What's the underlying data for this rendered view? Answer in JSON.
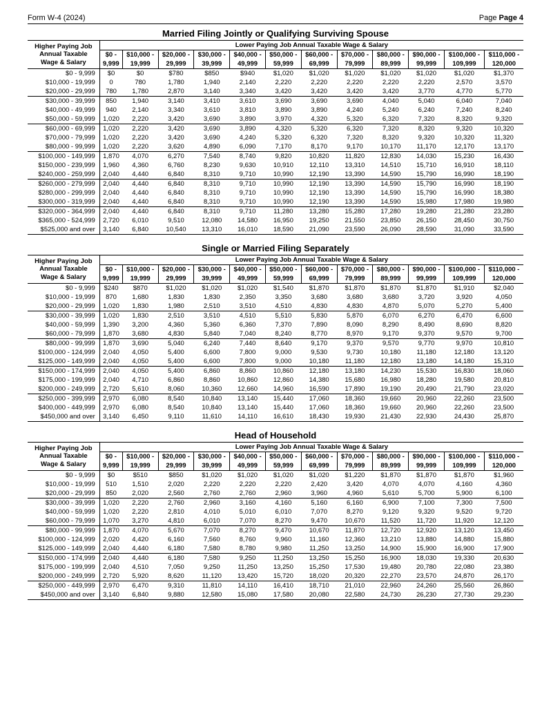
{
  "form_header": {
    "left": "Form W-4 (2024)",
    "right": "Page 4"
  },
  "tables": [
    {
      "title": "Married Filing Jointly or Qualifying Surviving Spouse",
      "left_header": [
        "Higher Paying Job",
        "Annual Taxable",
        "Wage & Salary"
      ],
      "lower_header": "Lower Paying Job Annual Taxable Wage & Salary",
      "col_top": [
        "$0 -",
        "$10,000 -",
        "$20,000 -",
        "$30,000 -",
        "$40,000 -",
        "$50,000 -",
        "$60,000 -",
        "$70,000 -",
        "$80,000 -",
        "$90,000 -",
        "$100,000 -",
        "$110,000 -"
      ],
      "col_bottom": [
        "9,999",
        "19,999",
        "29,999",
        "39,999",
        "49,999",
        "59,999",
        "69,999",
        "79,999",
        "89,999",
        "99,999",
        "109,999",
        "120,000"
      ],
      "rows": [
        {
          "label": "$0 -    9,999",
          "vals": [
            "$0",
            "$0",
            "$780",
            "$850",
            "$940",
            "$1,020",
            "$1,020",
            "$1,020",
            "$1,020",
            "$1,020",
            "$1,020",
            "$1,370"
          ]
        },
        {
          "label": "$10,000 -   19,999",
          "vals": [
            "0",
            "780",
            "1,780",
            "1,940",
            "2,140",
            "2,220",
            "2,220",
            "2,220",
            "2,220",
            "2,220",
            "2,570",
            "3,570"
          ]
        },
        {
          "label": "$20,000 -   29,999",
          "vals": [
            "780",
            "1,780",
            "2,870",
            "3,140",
            "3,340",
            "3,420",
            "3,420",
            "3,420",
            "3,420",
            "3,770",
            "4,770",
            "5,770"
          ]
        },
        {
          "label": "$30,000 -   39,999",
          "vals": [
            "850",
            "1,940",
            "3,140",
            "3,410",
            "3,610",
            "3,690",
            "3,690",
            "3,690",
            "4,040",
            "5,040",
            "6,040",
            "7,040"
          ],
          "sep": true
        },
        {
          "label": "$40,000 -   49,999",
          "vals": [
            "940",
            "2,140",
            "3,340",
            "3,610",
            "3,810",
            "3,890",
            "3,890",
            "4,240",
            "5,240",
            "6,240",
            "7,240",
            "8,240"
          ]
        },
        {
          "label": "$50,000 -   59,999",
          "vals": [
            "1,020",
            "2,220",
            "3,420",
            "3,690",
            "3,890",
            "3,970",
            "4,320",
            "5,320",
            "6,320",
            "7,320",
            "8,320",
            "9,320"
          ]
        },
        {
          "label": "$60,000 -   69,999",
          "vals": [
            "1,020",
            "2,220",
            "3,420",
            "3,690",
            "3,890",
            "4,320",
            "5,320",
            "6,320",
            "7,320",
            "8,320",
            "9,320",
            "10,320"
          ],
          "sep": true
        },
        {
          "label": "$70,000 -   79,999",
          "vals": [
            "1,020",
            "2,220",
            "3,420",
            "3,690",
            "4,240",
            "5,320",
            "6,320",
            "7,320",
            "8,320",
            "9,320",
            "10,320",
            "11,320"
          ]
        },
        {
          "label": "$80,000 -   99,999",
          "vals": [
            "1,020",
            "2,220",
            "3,620",
            "4,890",
            "6,090",
            "7,170",
            "8,170",
            "9,170",
            "10,170",
            "11,170",
            "12,170",
            "13,170"
          ]
        },
        {
          "label": "$100,000 - 149,999",
          "vals": [
            "1,870",
            "4,070",
            "6,270",
            "7,540",
            "8,740",
            "9,820",
            "10,820",
            "11,820",
            "12,830",
            "14,030",
            "15,230",
            "16,430"
          ],
          "sep": true
        },
        {
          "label": "$150,000 - 239,999",
          "vals": [
            "1,960",
            "4,360",
            "6,760",
            "8,230",
            "9,630",
            "10,910",
            "12,110",
            "13,310",
            "14,510",
            "15,710",
            "16,910",
            "18,110"
          ]
        },
        {
          "label": "$240,000 - 259,999",
          "vals": [
            "2,040",
            "4,440",
            "6,840",
            "8,310",
            "9,710",
            "10,990",
            "12,190",
            "13,390",
            "14,590",
            "15,790",
            "16,990",
            "18,190"
          ]
        },
        {
          "label": "$260,000 - 279,999",
          "vals": [
            "2,040",
            "4,440",
            "6,840",
            "8,310",
            "9,710",
            "10,990",
            "12,190",
            "13,390",
            "14,590",
            "15,790",
            "16,990",
            "18,190"
          ],
          "sep": true
        },
        {
          "label": "$280,000 - 299,999",
          "vals": [
            "2,040",
            "4,440",
            "6,840",
            "8,310",
            "9,710",
            "10,990",
            "12,190",
            "13,390",
            "14,590",
            "15,790",
            "16,990",
            "18,380"
          ]
        },
        {
          "label": "$300,000 - 319,999",
          "vals": [
            "2,040",
            "4,440",
            "6,840",
            "8,310",
            "9,710",
            "10,990",
            "12,190",
            "13,390",
            "14,590",
            "15,980",
            "17,980",
            "19,980"
          ]
        },
        {
          "label": "$320,000 - 364,999",
          "vals": [
            "2,040",
            "4,440",
            "6,840",
            "8,310",
            "9,710",
            "11,280",
            "13,280",
            "15,280",
            "17,280",
            "19,280",
            "21,280",
            "23,280"
          ],
          "sep": true
        },
        {
          "label": "$365,000 - 524,999",
          "vals": [
            "2,720",
            "6,010",
            "9,510",
            "12,080",
            "14,580",
            "16,950",
            "19,250",
            "21,550",
            "23,850",
            "26,150",
            "28,450",
            "30,750"
          ]
        },
        {
          "label": "$525,000 and over",
          "vals": [
            "3,140",
            "6,840",
            "10,540",
            "13,310",
            "16,010",
            "18,590",
            "21,090",
            "23,590",
            "26,090",
            "28,590",
            "31,090",
            "33,590"
          ]
        }
      ]
    },
    {
      "title": "Single or Married Filing Separately",
      "left_header": [
        "Higher Paying Job",
        "Annual Taxable",
        "Wage & Salary"
      ],
      "lower_header": "Lower Paying Job Annual Taxable Wage & Salary",
      "col_top": [
        "$0 -",
        "$10,000 -",
        "$20,000 -",
        "$30,000 -",
        "$40,000 -",
        "$50,000 -",
        "$60,000 -",
        "$70,000 -",
        "$80,000 -",
        "$90,000 -",
        "$100,000 -",
        "$110,000 -"
      ],
      "col_bottom": [
        "9,999",
        "19,999",
        "29,999",
        "39,999",
        "49,999",
        "59,999",
        "69,999",
        "79,999",
        "89,999",
        "99,999",
        "109,999",
        "120,000"
      ],
      "rows": [
        {
          "label": "$0 -    9,999",
          "vals": [
            "$240",
            "$870",
            "$1,020",
            "$1,020",
            "$1,020",
            "$1,540",
            "$1,870",
            "$1,870",
            "$1,870",
            "$1,870",
            "$1,910",
            "$2,040"
          ]
        },
        {
          "label": "$10,000 -   19,999",
          "vals": [
            "870",
            "1,680",
            "1,830",
            "1,830",
            "2,350",
            "3,350",
            "3,680",
            "3,680",
            "3,680",
            "3,720",
            "3,920",
            "4,050"
          ]
        },
        {
          "label": "$20,000 -   29,999",
          "vals": [
            "1,020",
            "1,830",
            "1,980",
            "2,510",
            "3,510",
            "4,510",
            "4,830",
            "4,830",
            "4,870",
            "5,070",
            "5,270",
            "5,400"
          ]
        },
        {
          "label": "$30,000 -   39,999",
          "vals": [
            "1,020",
            "1,830",
            "2,510",
            "3,510",
            "4,510",
            "5,510",
            "5,830",
            "5,870",
            "6,070",
            "6,270",
            "6,470",
            "6,600"
          ],
          "sep": true
        },
        {
          "label": "$40,000 -   59,999",
          "vals": [
            "1,390",
            "3,200",
            "4,360",
            "5,360",
            "6,360",
            "7,370",
            "7,890",
            "8,090",
            "8,290",
            "8,490",
            "8,690",
            "8,820"
          ]
        },
        {
          "label": "$60,000 -   79,999",
          "vals": [
            "1,870",
            "3,680",
            "4,830",
            "5,840",
            "7,040",
            "8,240",
            "8,770",
            "8,970",
            "9,170",
            "9,370",
            "9,570",
            "9,700"
          ]
        },
        {
          "label": "$80,000 -   99,999",
          "vals": [
            "1,870",
            "3,690",
            "5,040",
            "6,240",
            "7,440",
            "8,640",
            "9,170",
            "9,370",
            "9,570",
            "9,770",
            "9,970",
            "10,810"
          ],
          "sep": true
        },
        {
          "label": "$100,000 - 124,999",
          "vals": [
            "2,040",
            "4,050",
            "5,400",
            "6,600",
            "7,800",
            "9,000",
            "9,530",
            "9,730",
            "10,180",
            "11,180",
            "12,180",
            "13,120"
          ]
        },
        {
          "label": "$125,000 - 149,999",
          "vals": [
            "2,040",
            "4,050",
            "5,400",
            "6,600",
            "7,800",
            "9,000",
            "10,180",
            "11,180",
            "12,180",
            "13,180",
            "14,180",
            "15,310"
          ]
        },
        {
          "label": "$150,000 - 174,999",
          "vals": [
            "2,040",
            "4,050",
            "5,400",
            "6,860",
            "8,860",
            "10,860",
            "12,180",
            "13,180",
            "14,230",
            "15,530",
            "16,830",
            "18,060"
          ],
          "sep": true
        },
        {
          "label": "$175,000 - 199,999",
          "vals": [
            "2,040",
            "4,710",
            "6,860",
            "8,860",
            "10,860",
            "12,860",
            "14,380",
            "15,680",
            "16,980",
            "18,280",
            "19,580",
            "20,810"
          ]
        },
        {
          "label": "$200,000 - 249,999",
          "vals": [
            "2,720",
            "5,610",
            "8,060",
            "10,360",
            "12,660",
            "14,960",
            "16,590",
            "17,890",
            "19,190",
            "20,490",
            "21,790",
            "23,020"
          ]
        },
        {
          "label": "$250,000 - 399,999",
          "vals": [
            "2,970",
            "6,080",
            "8,540",
            "10,840",
            "13,140",
            "15,440",
            "17,060",
            "18,360",
            "19,660",
            "20,960",
            "22,260",
            "23,500"
          ],
          "sep": true
        },
        {
          "label": "$400,000 - 449,999",
          "vals": [
            "2,970",
            "6,080",
            "8,540",
            "10,840",
            "13,140",
            "15,440",
            "17,060",
            "18,360",
            "19,660",
            "20,960",
            "22,260",
            "23,500"
          ]
        },
        {
          "label": "$450,000 and over",
          "vals": [
            "3,140",
            "6,450",
            "9,110",
            "11,610",
            "14,110",
            "16,610",
            "18,430",
            "19,930",
            "21,430",
            "22,930",
            "24,430",
            "25,870"
          ]
        }
      ]
    },
    {
      "title": "Head of Household",
      "left_header": [
        "Higher Paying Job",
        "Annual Taxable",
        "Wage & Salary"
      ],
      "lower_header": "Lower Paying Job Annual Taxable Wage & Salary",
      "col_top": [
        "$0 -",
        "$10,000 -",
        "$20,000 -",
        "$30,000 -",
        "$40,000 -",
        "$50,000 -",
        "$60,000 -",
        "$70,000 -",
        "$80,000 -",
        "$90,000 -",
        "$100,000 -",
        "$110,000 -"
      ],
      "col_bottom": [
        "9,999",
        "19,999",
        "29,999",
        "39,999",
        "49,999",
        "59,999",
        "69,999",
        "79,999",
        "89,999",
        "99,999",
        "109,999",
        "120,000"
      ],
      "rows": [
        {
          "label": "$0 -    9,999",
          "vals": [
            "$0",
            "$510",
            "$850",
            "$1,020",
            "$1,020",
            "$1,020",
            "$1,020",
            "$1,220",
            "$1,870",
            "$1,870",
            "$1,870",
            "$1,960"
          ]
        },
        {
          "label": "$10,000 -   19,999",
          "vals": [
            "510",
            "1,510",
            "2,020",
            "2,220",
            "2,220",
            "2,220",
            "2,420",
            "3,420",
            "4,070",
            "4,070",
            "4,160",
            "4,360"
          ]
        },
        {
          "label": "$20,000 -   29,999",
          "vals": [
            "850",
            "2,020",
            "2,560",
            "2,760",
            "2,760",
            "2,960",
            "3,960",
            "4,960",
            "5,610",
            "5,700",
            "5,900",
            "6,100"
          ]
        },
        {
          "label": "$30,000 -   39,999",
          "vals": [
            "1,020",
            "2,220",
            "2,760",
            "2,960",
            "3,160",
            "4,160",
            "5,160",
            "6,160",
            "6,900",
            "7,100",
            "7,300",
            "7,500"
          ],
          "sep": true
        },
        {
          "label": "$40,000 -   59,999",
          "vals": [
            "1,020",
            "2,220",
            "2,810",
            "4,010",
            "5,010",
            "6,010",
            "7,070",
            "8,270",
            "9,120",
            "9,320",
            "9,520",
            "9,720"
          ]
        },
        {
          "label": "$60,000 -   79,999",
          "vals": [
            "1,070",
            "3,270",
            "4,810",
            "6,010",
            "7,070",
            "8,270",
            "9,470",
            "10,670",
            "11,520",
            "11,720",
            "11,920",
            "12,120"
          ]
        },
        {
          "label": "$80,000 -   99,999",
          "vals": [
            "1,870",
            "4,070",
            "5,670",
            "7,070",
            "8,270",
            "9,470",
            "10,670",
            "11,870",
            "12,720",
            "12,920",
            "13,120",
            "13,450"
          ],
          "sep": true
        },
        {
          "label": "$100,000 - 124,999",
          "vals": [
            "2,020",
            "4,420",
            "6,160",
            "7,560",
            "8,760",
            "9,960",
            "11,160",
            "12,360",
            "13,210",
            "13,880",
            "14,880",
            "15,880"
          ]
        },
        {
          "label": "$125,000 - 149,999",
          "vals": [
            "2,040",
            "4,440",
            "6,180",
            "7,580",
            "8,780",
            "9,980",
            "11,250",
            "13,250",
            "14,900",
            "15,900",
            "16,900",
            "17,900"
          ]
        },
        {
          "label": "$150,000 - 174,999",
          "vals": [
            "2,040",
            "4,440",
            "6,180",
            "7,580",
            "9,250",
            "11,250",
            "13,250",
            "15,250",
            "16,900",
            "18,030",
            "19,330",
            "20,630"
          ],
          "sep": true
        },
        {
          "label": "$175,000 - 199,999",
          "vals": [
            "2,040",
            "4,510",
            "7,050",
            "9,250",
            "11,250",
            "13,250",
            "15,250",
            "17,530",
            "19,480",
            "20,780",
            "22,080",
            "23,380"
          ]
        },
        {
          "label": "$200,000 - 249,999",
          "vals": [
            "2,720",
            "5,920",
            "8,620",
            "11,120",
            "13,420",
            "15,720",
            "18,020",
            "20,320",
            "22,270",
            "23,570",
            "24,870",
            "26,170"
          ]
        },
        {
          "label": "$250,000 - 449,999",
          "vals": [
            "2,970",
            "6,470",
            "9,310",
            "11,810",
            "14,110",
            "16,410",
            "18,710",
            "21,010",
            "22,960",
            "24,260",
            "25,560",
            "26,860"
          ],
          "sep": true
        },
        {
          "label": "$450,000 and over",
          "vals": [
            "3,140",
            "6,840",
            "9,880",
            "12,580",
            "15,080",
            "17,580",
            "20,080",
            "22,580",
            "24,730",
            "26,230",
            "27,730",
            "29,230"
          ]
        }
      ]
    }
  ]
}
